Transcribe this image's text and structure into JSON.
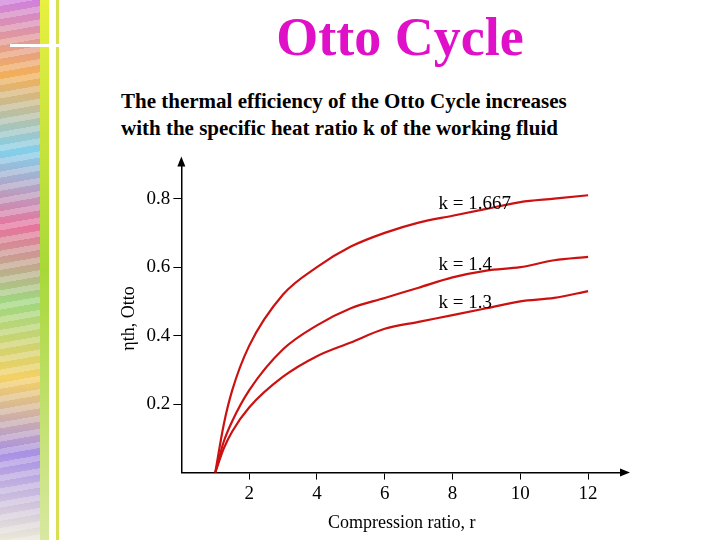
{
  "chart_data": {
    "type": "line",
    "title": "Otto Cycle",
    "subtitle": [
      "The thermal efficiency of the Otto Cycle increases",
      "with the specific heat ratio k of the working fluid"
    ],
    "xlabel": "Compression ratio, r",
    "ylabel": "ηth, Otto",
    "x": [
      1,
      1.25,
      1.5,
      2,
      3,
      4,
      5,
      6,
      7,
      8,
      9,
      10,
      11,
      12
    ],
    "series": [
      {
        "name": "k = 1.667",
        "color": "#cc1111",
        "values": [
          0,
          0.14,
          0.24,
          0.37,
          0.52,
          0.6,
          0.66,
          0.7,
          0.73,
          0.75,
          0.77,
          0.79,
          0.8,
          0.81
        ]
      },
      {
        "name": "k = 1.4",
        "color": "#cc1111",
        "values": [
          0,
          0.09,
          0.15,
          0.24,
          0.36,
          0.43,
          0.48,
          0.51,
          0.54,
          0.57,
          0.59,
          0.6,
          0.62,
          0.63
        ]
      },
      {
        "name": "k = 1.3",
        "color": "#cc1111",
        "values": [
          0,
          0.07,
          0.12,
          0.19,
          0.28,
          0.34,
          0.38,
          0.42,
          0.44,
          0.46,
          0.48,
          0.5,
          0.51,
          0.53
        ]
      }
    ],
    "xlim": [
      0,
      13
    ],
    "ylim": [
      0,
      0.9
    ],
    "xticks": [
      2,
      4,
      6,
      8,
      10,
      12
    ],
    "yticks": [
      0.2,
      0.4,
      0.6,
      0.8
    ],
    "grid": false
  }
}
